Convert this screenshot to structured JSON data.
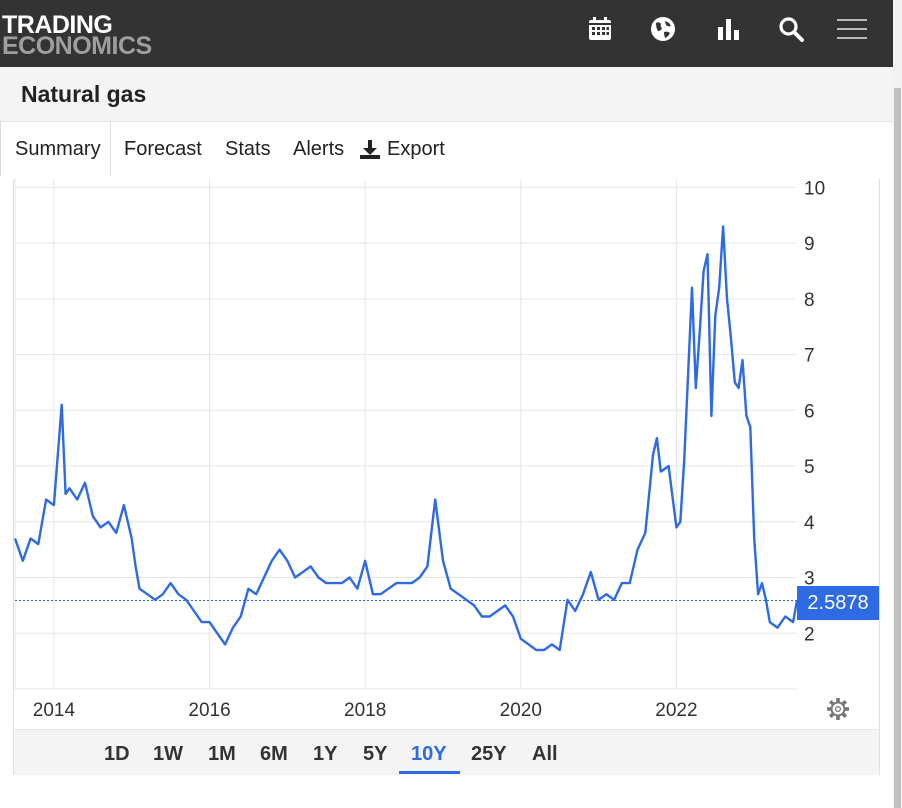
{
  "header": {
    "logo_line1": "TRADING",
    "logo_line2": "ECONOMICS",
    "icons": [
      "calendar-icon",
      "globe-icon",
      "bar-chart-icon",
      "search-icon",
      "hamburger-menu-icon"
    ]
  },
  "page": {
    "title": "Natural gas"
  },
  "tabs": {
    "summary": "Summary",
    "forecast": "Forecast",
    "stats": "Stats",
    "alerts": "Alerts",
    "export": "Export"
  },
  "chart": {
    "current_price": "2.5878",
    "periods": [
      "1D",
      "1W",
      "1M",
      "6M",
      "1Y",
      "5Y",
      "10Y",
      "25Y",
      "All"
    ],
    "active_period": "10Y"
  },
  "colors": {
    "series": "#2d6ae3",
    "accent": "#2d6ae3",
    "header_bg": "#333333"
  },
  "chart_data": {
    "type": "line",
    "grid": true,
    "xlim": [
      2013.5,
      2023.55
    ],
    "ylim": [
      1.0,
      10.15
    ],
    "x_ticks": [
      2014,
      2016,
      2018,
      2020,
      2022
    ],
    "y_ticks": [
      2,
      3,
      4,
      5,
      6,
      7,
      8,
      9,
      10
    ],
    "current_value": 2.5878,
    "series": [
      {
        "x": [
          2013.5,
          2013.6,
          2013.7,
          2013.8,
          2013.9,
          2014.0,
          2014.05,
          2014.1,
          2014.15,
          2014.2,
          2014.3,
          2014.4,
          2014.45,
          2014.5,
          2014.6,
          2014.7,
          2014.8,
          2014.9,
          2015.0,
          2015.05,
          2015.1,
          2015.2,
          2015.3,
          2015.4,
          2015.5,
          2015.6,
          2015.7,
          2015.8,
          2015.9,
          2016.0,
          2016.1,
          2016.2,
          2016.3,
          2016.4,
          2016.5,
          2016.6,
          2016.7,
          2016.8,
          2016.9,
          2017.0,
          2017.1,
          2017.2,
          2017.3,
          2017.4,
          2017.5,
          2017.6,
          2017.7,
          2017.8,
          2017.9,
          2018.0,
          2018.1,
          2018.2,
          2018.3,
          2018.4,
          2018.5,
          2018.6,
          2018.7,
          2018.8,
          2018.85,
          2018.9,
          2019.0,
          2019.1,
          2019.2,
          2019.3,
          2019.4,
          2019.5,
          2019.6,
          2019.7,
          2019.8,
          2019.9,
          2020.0,
          2020.1,
          2020.2,
          2020.3,
          2020.4,
          2020.5,
          2020.6,
          2020.7,
          2020.8,
          2020.9,
          2021.0,
          2021.1,
          2021.2,
          2021.3,
          2021.4,
          2021.5,
          2021.6,
          2021.7,
          2021.75,
          2021.8,
          2021.9,
          2022.0,
          2022.05,
          2022.1,
          2022.2,
          2022.25,
          2022.3,
          2022.35,
          2022.4,
          2022.45,
          2022.5,
          2022.55,
          2022.6,
          2022.65,
          2022.7,
          2022.75,
          2022.8,
          2022.85,
          2022.9,
          2022.95,
          2023.0,
          2023.05,
          2023.1,
          2023.15,
          2023.2,
          2023.3,
          2023.4,
          2023.5,
          2023.55
        ],
        "y": [
          3.7,
          3.3,
          3.7,
          3.6,
          4.4,
          4.3,
          5.2,
          6.1,
          4.5,
          4.6,
          4.4,
          4.7,
          4.4,
          4.1,
          3.9,
          4.0,
          3.8,
          4.3,
          3.7,
          3.2,
          2.8,
          2.7,
          2.6,
          2.7,
          2.9,
          2.7,
          2.6,
          2.4,
          2.2,
          2.2,
          2.0,
          1.8,
          2.1,
          2.3,
          2.8,
          2.7,
          3.0,
          3.3,
          3.5,
          3.3,
          3.0,
          3.1,
          3.2,
          3.0,
          2.9,
          2.9,
          2.9,
          3.0,
          2.8,
          3.3,
          2.7,
          2.7,
          2.8,
          2.9,
          2.9,
          2.9,
          3.0,
          3.2,
          3.8,
          4.4,
          3.3,
          2.8,
          2.7,
          2.6,
          2.5,
          2.3,
          2.3,
          2.4,
          2.5,
          2.3,
          1.9,
          1.8,
          1.7,
          1.7,
          1.8,
          1.7,
          2.6,
          2.4,
          2.7,
          3.1,
          2.6,
          2.7,
          2.6,
          2.9,
          2.9,
          3.5,
          3.8,
          5.2,
          5.5,
          4.9,
          5.0,
          3.9,
          4.0,
          5.1,
          8.2,
          6.4,
          7.4,
          8.5,
          8.8,
          5.9,
          7.7,
          8.2,
          9.3,
          8.0,
          7.3,
          6.5,
          6.4,
          6.9,
          5.9,
          5.7,
          3.7,
          2.7,
          2.9,
          2.6,
          2.2,
          2.1,
          2.3,
          2.2,
          2.5878
        ]
      }
    ]
  }
}
